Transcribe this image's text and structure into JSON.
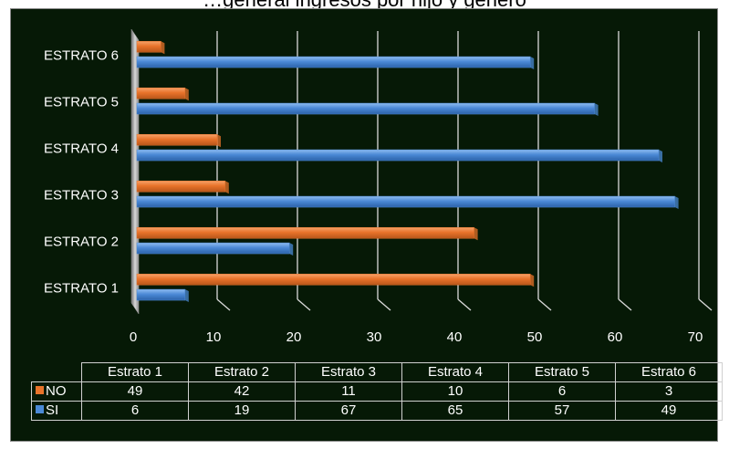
{
  "title": "…general ingresos por hijo y género",
  "chart_data": {
    "type": "bar",
    "orientation": "horizontal",
    "categories": [
      "ESTRATO 1",
      "ESTRATO 2",
      "ESTRATO 3",
      "ESTRATO 4",
      "ESTRATO 5",
      "ESTRATO 6"
    ],
    "series": [
      {
        "name": "NO",
        "color": "#e8732a",
        "values": [
          49,
          42,
          11,
          10,
          6,
          3
        ]
      },
      {
        "name": "SI",
        "color": "#4b89d6",
        "values": [
          6,
          19,
          67,
          65,
          57,
          49
        ]
      }
    ],
    "xlim": [
      0,
      70
    ],
    "xticks": [
      "0",
      "10",
      "20",
      "30",
      "40",
      "50",
      "60",
      "70"
    ],
    "grid": true,
    "legend": "table",
    "table": {
      "columns": [
        "Estrato 1",
        "Estrato 2",
        "Estrato 3",
        "Estrato 4",
        "Estrato 5",
        "Estrato 6"
      ]
    }
  }
}
